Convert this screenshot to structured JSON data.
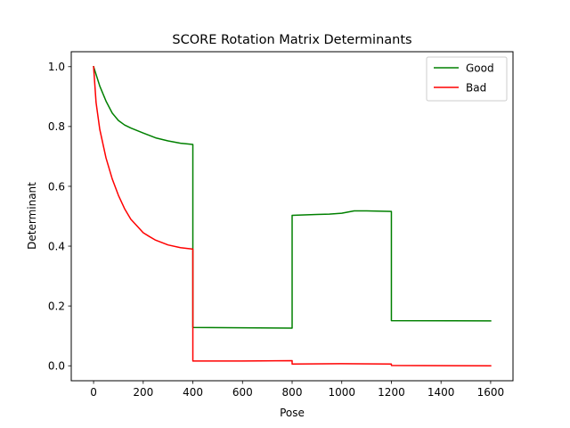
{
  "chart_data": {
    "type": "line",
    "title": "SCORE Rotation Matrix Determinants",
    "xlabel": "Pose",
    "ylabel": "Determinant",
    "xlim": [
      -90,
      1690
    ],
    "ylim": [
      -0.05,
      1.05
    ],
    "x_ticks": [
      0,
      200,
      400,
      600,
      800,
      1000,
      1200,
      1400,
      1600
    ],
    "x_tick_labels": [
      "0",
      "200",
      "400",
      "600",
      "800",
      "1000",
      "1200",
      "1400",
      "1600"
    ],
    "y_ticks": [
      0.0,
      0.2,
      0.4,
      0.6,
      0.8,
      1.0
    ],
    "y_tick_labels": [
      "0.0",
      "0.2",
      "0.4",
      "0.6",
      "0.8",
      "1.0"
    ],
    "grid": false,
    "legend_position": "top-right",
    "series": [
      {
        "name": "Good",
        "color": "#008000",
        "x": [
          0,
          25,
          50,
          75,
          100,
          125,
          150,
          200,
          250,
          300,
          350,
          400,
          400,
          600,
          800,
          800,
          900,
          950,
          1000,
          1050,
          1100,
          1200,
          1200,
          1600
        ],
        "y": [
          1.0,
          0.935,
          0.885,
          0.845,
          0.82,
          0.805,
          0.795,
          0.778,
          0.762,
          0.752,
          0.744,
          0.74,
          0.128,
          0.127,
          0.126,
          0.503,
          0.506,
          0.507,
          0.51,
          0.518,
          0.518,
          0.516,
          0.151,
          0.15
        ]
      },
      {
        "name": "Bad",
        "color": "#ff0000",
        "x": [
          0,
          10,
          25,
          50,
          75,
          100,
          125,
          150,
          200,
          225,
          250,
          300,
          350,
          400,
          400,
          600,
          800,
          800,
          1000,
          1200,
          1200,
          1600
        ],
        "y": [
          1.0,
          0.88,
          0.79,
          0.695,
          0.625,
          0.57,
          0.525,
          0.49,
          0.445,
          0.432,
          0.42,
          0.404,
          0.395,
          0.39,
          0.016,
          0.016,
          0.017,
          0.006,
          0.007,
          0.006,
          0.001,
          0.0
        ]
      }
    ]
  }
}
